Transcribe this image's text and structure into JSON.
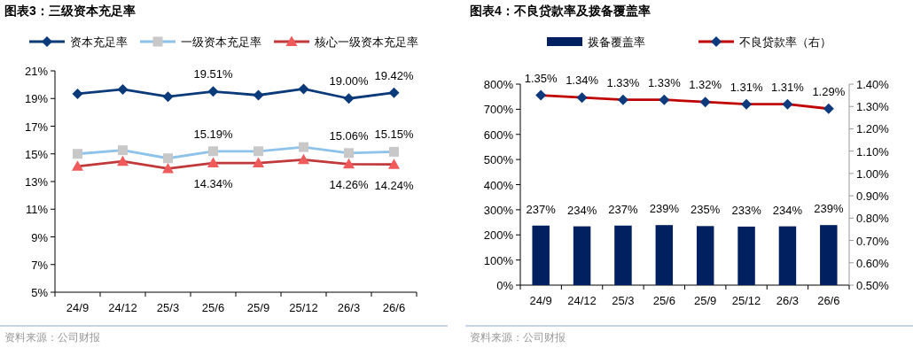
{
  "chart_data": [
    {
      "type": "line",
      "title": "图表3：三级资本充足率",
      "categories": [
        "24/9",
        "24/12",
        "25/3",
        "25/6",
        "25/9",
        "25/12",
        "26/3",
        "26/6"
      ],
      "series": [
        {
          "name": "资本充足率",
          "color": "#0b3a7a",
          "marker": "diamond",
          "values": [
            19.34,
            19.66,
            19.13,
            19.51,
            19.24,
            19.69,
            19.0,
            19.42
          ],
          "value_labels": [
            null,
            null,
            null,
            "19.51%",
            null,
            null,
            "19.00%",
            "19.42%"
          ]
        },
        {
          "name": "一级资本充足率",
          "color": "#8dc3ea",
          "marker": "square",
          "values": [
            15.0,
            15.26,
            14.68,
            15.19,
            15.19,
            15.49,
            15.06,
            15.15
          ],
          "value_labels": [
            null,
            null,
            null,
            "15.19%",
            null,
            null,
            "15.06%",
            "15.15%"
          ]
        },
        {
          "name": "核心一级资本充足率",
          "color": "#c0393b",
          "marker": "triangle",
          "values": [
            14.1,
            14.46,
            13.93,
            14.34,
            14.34,
            14.58,
            14.26,
            14.24
          ],
          "value_labels": [
            null,
            null,
            null,
            "14.34%",
            null,
            null,
            "14.26%",
            "14.24%"
          ]
        }
      ],
      "ylim": [
        5,
        21
      ],
      "yticks": [
        {
          "value": 5,
          "label": "5%"
        },
        {
          "value": 7,
          "label": "7%"
        },
        {
          "value": 9,
          "label": "9%"
        },
        {
          "value": 11,
          "label": "11%"
        },
        {
          "value": 13,
          "label": "13%"
        },
        {
          "value": 15,
          "label": "15%"
        },
        {
          "value": 17,
          "label": "17%"
        },
        {
          "value": 19,
          "label": "19%"
        },
        {
          "value": 21,
          "label": "21%"
        }
      ],
      "legend": "top",
      "annotations": [
        "资料来源：公司财报"
      ]
    },
    {
      "type": "bar",
      "title": "图表4：不良贷款率及拨备覆盖率",
      "categories": [
        "24/9",
        "24/12",
        "25/3",
        "25/6",
        "25/9",
        "25/12",
        "26/3",
        "26/6"
      ],
      "series": [
        {
          "name": "拨备覆盖率",
          "color": "#002060",
          "values": [
            237,
            234,
            237,
            239,
            235,
            233,
            234,
            239
          ],
          "value_labels": [
            "237%",
            "234%",
            "237%",
            "239%",
            "235%",
            "233%",
            "234%",
            "239%"
          ]
        },
        {
          "name": "不良贷款率（右）",
          "type": "line",
          "axis": "y2",
          "color": "#c00000",
          "marker": "diamond",
          "values": [
            1.35,
            1.34,
            1.33,
            1.33,
            1.32,
            1.31,
            1.31,
            1.29
          ],
          "value_labels": [
            "1.35%",
            "1.34%",
            "1.33%",
            "1.33%",
            "1.32%",
            "1.31%",
            "1.31%",
            "1.29%"
          ]
        }
      ],
      "ylim": [
        0,
        800
      ],
      "yticks": [
        {
          "value": 0,
          "label": "0%"
        },
        {
          "value": 100,
          "label": "100%"
        },
        {
          "value": 200,
          "label": "200%"
        },
        {
          "value": 300,
          "label": "300%"
        },
        {
          "value": 400,
          "label": "400%"
        },
        {
          "value": 500,
          "label": "500%"
        },
        {
          "value": 600,
          "label": "600%"
        },
        {
          "value": 700,
          "label": "700%"
        },
        {
          "value": 800,
          "label": "800%"
        }
      ],
      "y2lim": [
        0.5,
        1.4
      ],
      "y2ticks": [
        {
          "value": 0.5,
          "label": "0.50%"
        },
        {
          "value": 0.6,
          "label": "0.60%"
        },
        {
          "value": 0.7,
          "label": "0.70%"
        },
        {
          "value": 0.8,
          "label": "0.80%"
        },
        {
          "value": 0.9,
          "label": "0.90%"
        },
        {
          "value": 1.0,
          "label": "1.00%"
        },
        {
          "value": 1.1,
          "label": "1.10%"
        },
        {
          "value": 1.2,
          "label": "1.20%"
        },
        {
          "value": 1.3,
          "label": "1.30%"
        },
        {
          "value": 1.4,
          "label": "1.40%"
        }
      ],
      "legend": "top",
      "annotations": [
        "资料来源：公司财报"
      ]
    }
  ]
}
